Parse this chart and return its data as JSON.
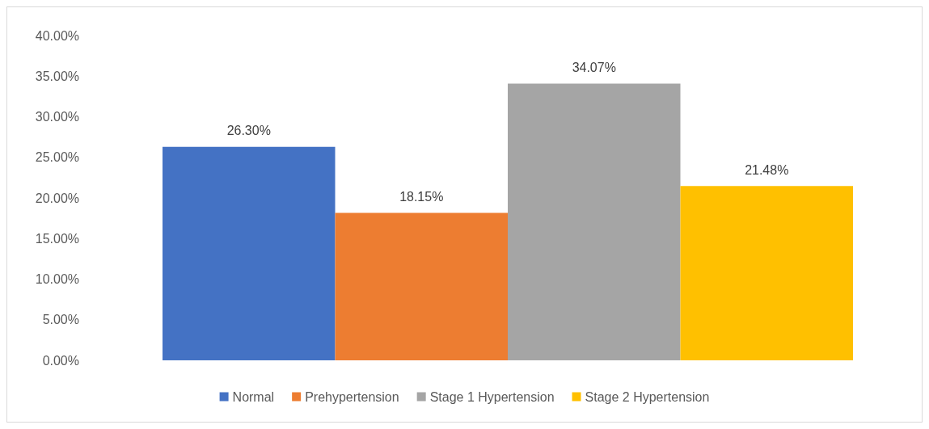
{
  "chart_data": {
    "type": "bar",
    "categories": [
      null
    ],
    "series": [
      {
        "name": "Normal",
        "color": "#4472c4",
        "values": [
          26.3
        ],
        "value_labels": [
          "26.30%"
        ]
      },
      {
        "name": "Prehypertension",
        "color": "#ed7d31",
        "values": [
          18.15
        ],
        "value_labels": [
          "18.15%"
        ]
      },
      {
        "name": "Stage 1 Hypertension",
        "color": "#a5a5a5",
        "values": [
          34.07
        ],
        "value_labels": [
          "34.07%"
        ]
      },
      {
        "name": "Stage 2 Hypertension",
        "color": "#ffc000",
        "values": [
          21.48
        ],
        "value_labels": [
          "21.48%"
        ]
      }
    ],
    "ylim": [
      0,
      40
    ],
    "yticks": [
      {
        "value": 0,
        "label": "0.00%"
      },
      {
        "value": 5,
        "label": "5.00%"
      },
      {
        "value": 10,
        "label": "10.00%"
      },
      {
        "value": 15,
        "label": "15.00%"
      },
      {
        "value": 20,
        "label": "20.00%"
      },
      {
        "value": 25,
        "label": "25.00%"
      },
      {
        "value": 30,
        "label": "30.00%"
      },
      {
        "value": 35,
        "label": "35.00%"
      },
      {
        "value": 40,
        "label": "40.00%"
      }
    ],
    "legend": "bottom"
  }
}
